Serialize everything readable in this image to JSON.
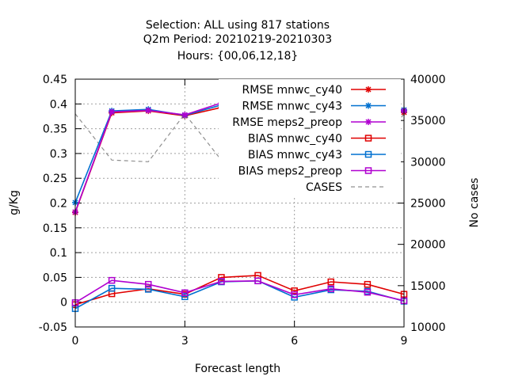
{
  "chart_data": {
    "type": "line",
    "title_lines": [
      "Selection: ALL using   817 stations",
      "Q2m   Period: 20210219-20210303",
      "Hours: {00,06,12,18}"
    ],
    "xlabel": "Forecast length",
    "ylabel": "g/Kg",
    "y2label": "No cases",
    "x_ticks": [
      0,
      3,
      6,
      9
    ],
    "y_ticks": [
      "-0.05",
      "0",
      "0.05",
      "0.1",
      "0.15",
      "0.2",
      "0.25",
      "0.3",
      "0.35",
      "0.4",
      "0.45"
    ],
    "y2_ticks": [
      "10000",
      "15000",
      "20000",
      "25000",
      "30000",
      "35000",
      "40000"
    ],
    "xlim": [
      0,
      9
    ],
    "ylim": [
      -0.05,
      0.45
    ],
    "y2lim": [
      10000,
      40000
    ],
    "grid": true,
    "legend_position": "top-right",
    "x": [
      0,
      1,
      2,
      3,
      4,
      5,
      6,
      7,
      8,
      9
    ],
    "series": [
      {
        "name": "RMSE mnwc_cy40",
        "axis": "y",
        "color": "#e00000",
        "marker": "star",
        "values": [
          0.181,
          0.382,
          0.386,
          0.376,
          0.393,
          0.393,
          0.373,
          0.39,
          0.393,
          0.383
        ]
      },
      {
        "name": "RMSE mnwc_cy43",
        "axis": "y",
        "color": "#0070d0",
        "marker": "star",
        "values": [
          0.201,
          0.386,
          0.389,
          0.377,
          0.398,
          0.398,
          0.38,
          0.393,
          0.397,
          0.388
        ]
      },
      {
        "name": "RMSE meps2_preop",
        "axis": "y",
        "color": "#b000d0",
        "marker": "star",
        "values": [
          0.182,
          0.384,
          0.387,
          0.378,
          0.402,
          0.402,
          0.376,
          0.389,
          0.395,
          0.386
        ]
      },
      {
        "name": "BIAS mnwc_cy40",
        "axis": "y",
        "color": "#e00000",
        "marker": "square",
        "values": [
          -0.005,
          0.017,
          0.027,
          0.016,
          0.05,
          0.054,
          0.023,
          0.041,
          0.036,
          0.016
        ]
      },
      {
        "name": "BIAS mnwc_cy43",
        "axis": "y",
        "color": "#0070d0",
        "marker": "square",
        "values": [
          -0.013,
          0.028,
          0.026,
          0.011,
          0.041,
          0.043,
          0.01,
          0.025,
          0.022,
          0.002
        ]
      },
      {
        "name": "BIAS meps2_preop",
        "axis": "y",
        "color": "#b000d0",
        "marker": "square",
        "values": [
          -0.001,
          0.044,
          0.036,
          0.019,
          0.042,
          0.043,
          0.015,
          0.027,
          0.02,
          0.003
        ]
      },
      {
        "name": "CASES",
        "axis": "y2",
        "color": "#909090",
        "marker": "none",
        "dashed": true,
        "values": [
          35800,
          30200,
          30000,
          35800,
          30200,
          29900,
          35800,
          30400,
          29900,
          35800
        ]
      }
    ]
  }
}
